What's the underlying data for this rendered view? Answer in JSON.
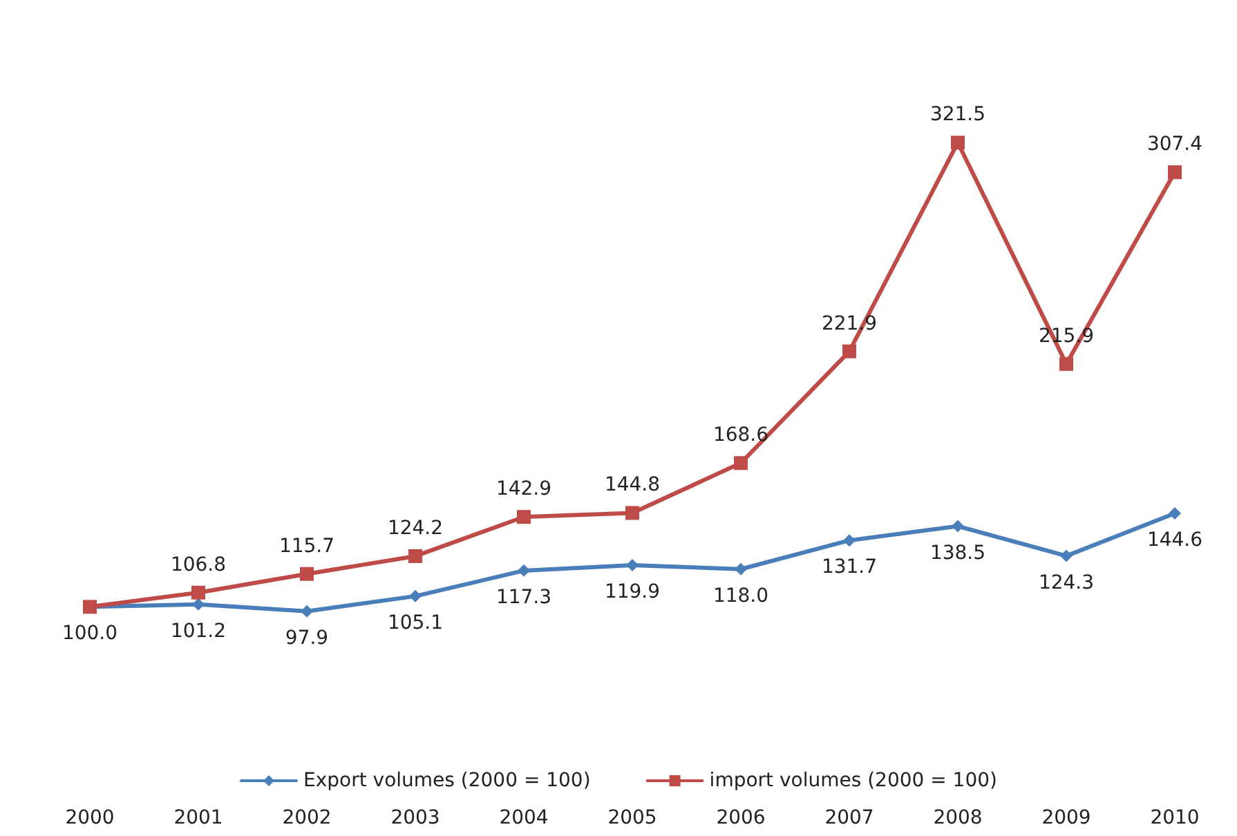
{
  "chart_data": {
    "type": "line",
    "categories": [
      "2000",
      "2001",
      "2002",
      "2003",
      "2004",
      "2005",
      "2006",
      "2007",
      "2008",
      "2009",
      "2010"
    ],
    "series": [
      {
        "name": "Export volumes (2000 = 100)",
        "color": "#4a7ebb",
        "marker": "diamond",
        "values": [
          100.0,
          101.2,
          97.9,
          105.1,
          117.3,
          119.9,
          118.0,
          131.7,
          138.5,
          124.3,
          144.6
        ],
        "value_labels": [
          "100.0",
          "101.2",
          "97.9",
          "105.1",
          "117.3",
          "119.9",
          "118.0",
          "131.7",
          "138.5",
          "124.3",
          "144.6"
        ]
      },
      {
        "name": "import volumes (2000 = 100)",
        "color": "#be4b48",
        "marker": "square",
        "values": [
          100.0,
          106.8,
          115.7,
          124.2,
          142.9,
          144.8,
          168.6,
          221.9,
          321.5,
          215.9,
          307.4
        ],
        "value_labels": [
          null,
          "106.8",
          "115.7",
          "124.2",
          "142.9",
          "144.8",
          "168.6",
          "221.9",
          "321.5",
          "215.9",
          "307.4"
        ]
      }
    ],
    "legend": "bottom",
    "grid": false,
    "tick_labels": "x"
  }
}
